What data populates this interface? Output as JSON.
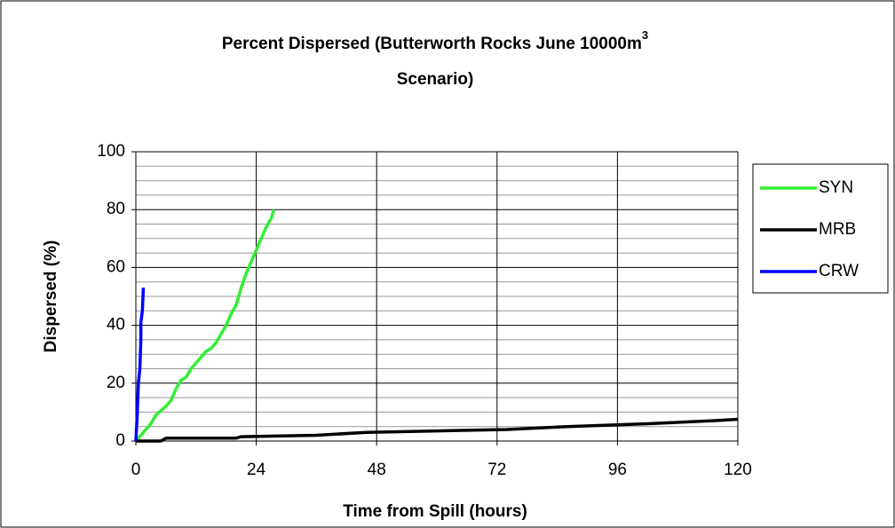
{
  "chart_data": {
    "type": "line",
    "title": [
      "Percent Dispersed (Butterworth Rocks June 10000m",
      "3",
      "Scenario)"
    ],
    "x_label": "Time from Spill (hours)",
    "y_label": "Dispersed (%)",
    "xlim": [
      0,
      120
    ],
    "xticks": [
      0,
      24,
      48,
      72,
      96,
      120
    ],
    "ylim": [
      0,
      100
    ],
    "yticks": [
      0,
      20,
      40,
      60,
      80,
      100
    ],
    "ygrid": [
      5,
      10,
      15,
      25,
      30,
      35,
      45,
      50,
      55,
      65,
      70,
      75,
      85,
      90,
      95
    ],
    "grid": true,
    "legend": "right",
    "series": [
      {
        "name": "SYN",
        "color": "#33ee33",
        "x": [
          0,
          1,
          2,
          3,
          4,
          6,
          7,
          8,
          9,
          10,
          11,
          12,
          13,
          14,
          15,
          16,
          17,
          18,
          19,
          20,
          21,
          22,
          23,
          24,
          25,
          26,
          27,
          27.5
        ],
        "values": [
          0,
          2,
          4,
          6,
          9,
          12,
          14,
          18,
          21,
          22,
          25,
          27,
          29,
          31,
          32,
          34,
          37,
          40,
          44,
          47,
          53,
          58,
          62,
          66,
          70,
          74,
          77,
          80
        ]
      },
      {
        "name": "MRB",
        "color": "#000000",
        "x": [
          0,
          5,
          6,
          20,
          21,
          36,
          46,
          60,
          74,
          86,
          102,
          115,
          120
        ],
        "values": [
          0,
          0,
          1,
          1,
          1.5,
          2,
          3,
          3.5,
          4,
          5,
          6,
          7,
          7.5
        ]
      },
      {
        "name": "CRW",
        "color": "#0000ff",
        "x": [
          0,
          0.3,
          0.5,
          0.8,
          1,
          1,
          1.3,
          1.5
        ],
        "values": [
          0,
          10,
          20,
          25,
          35,
          41,
          45,
          53
        ]
      }
    ]
  }
}
